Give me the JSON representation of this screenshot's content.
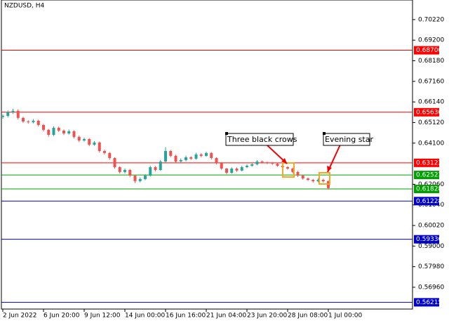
{
  "chart_data": {
    "type": "candlestick",
    "title": "NZDUSD, H4",
    "categories": [
      "2 Jun 2022",
      null,
      null,
      null,
      null,
      null,
      null,
      null,
      "6 Jun 20:00",
      null,
      null,
      null,
      null,
      null,
      null,
      null,
      "9 Jun 12:00",
      null,
      null,
      null,
      null,
      null,
      null,
      null,
      "14 Jun 00:00",
      null,
      null,
      null,
      null,
      null,
      null,
      null,
      "16 Jun 16:00",
      null,
      null,
      null,
      null,
      null,
      null,
      null,
      "21 Jun 04:00",
      null,
      null,
      null,
      null,
      null,
      null,
      null,
      "23 Jun 20:00",
      null,
      null,
      null,
      null,
      null,
      null,
      null,
      "28 Jun 08:00",
      null,
      null,
      null,
      null,
      null,
      null,
      null,
      "1 Jul 00:00"
    ],
    "open": [
      0.654,
      0.6545,
      0.6563,
      0.657,
      0.6535,
      0.6517,
      0.6514,
      0.6521,
      0.65,
      0.6476,
      0.6451,
      0.6486,
      0.6472,
      0.6458,
      0.6469,
      0.6441,
      0.6423,
      0.643,
      0.6402,
      0.6413,
      0.6371,
      0.6361,
      0.6336,
      0.6291,
      0.6267,
      0.6277,
      0.6249,
      0.6222,
      0.6232,
      0.6249,
      0.6291,
      0.6277,
      0.6319,
      0.6371,
      0.6347,
      0.6319,
      0.6326,
      0.634,
      0.6333,
      0.6354,
      0.6347,
      0.6361,
      0.6336,
      0.6312,
      0.6284,
      0.6263,
      0.6284,
      0.6274,
      0.6291,
      0.6298,
      0.6305,
      0.6319,
      0.6315,
      0.6312,
      0.6308,
      0.6298,
      0.6291,
      0.6284,
      0.6267,
      0.6249,
      0.6235,
      0.6228,
      0.6221,
      0.6228,
      0.6221
    ],
    "high": [
      0.6552,
      0.6572,
      0.658,
      0.6578,
      0.6541,
      0.6524,
      0.6529,
      0.6526,
      0.6505,
      0.648,
      0.6494,
      0.6492,
      0.6478,
      0.6477,
      0.6473,
      0.6447,
      0.6438,
      0.6435,
      0.642,
      0.6418,
      0.6377,
      0.6366,
      0.634,
      0.6296,
      0.6285,
      0.6282,
      0.6254,
      0.624,
      0.6257,
      0.6299,
      0.6296,
      0.6327,
      0.639,
      0.6376,
      0.6352,
      0.6334,
      0.6348,
      0.6345,
      0.6362,
      0.636,
      0.6368,
      0.6366,
      0.634,
      0.6316,
      0.6288,
      0.6291,
      0.629,
      0.6298,
      0.6305,
      0.6312,
      0.6326,
      0.6324,
      0.632,
      0.6317,
      0.6313,
      0.6303,
      0.6296,
      0.6289,
      0.6272,
      0.6254,
      0.624,
      0.6233,
      0.6235,
      0.6234,
      0.6226
    ],
    "low": [
      0.6531,
      0.6538,
      0.6555,
      0.6527,
      0.651,
      0.6506,
      0.6508,
      0.6493,
      0.6468,
      0.6442,
      0.6445,
      0.6465,
      0.645,
      0.6452,
      0.6433,
      0.6415,
      0.6417,
      0.6395,
      0.6397,
      0.6364,
      0.6353,
      0.6328,
      0.6283,
      0.6259,
      0.626,
      0.6241,
      0.6212,
      0.6215,
      0.6226,
      0.6244,
      0.627,
      0.6272,
      0.6314,
      0.634,
      0.6312,
      0.6313,
      0.632,
      0.6326,
      0.6328,
      0.634,
      0.6342,
      0.6329,
      0.6305,
      0.6277,
      0.6256,
      0.6258,
      0.6268,
      0.627,
      0.6286,
      0.6293,
      0.63,
      0.6309,
      0.6306,
      0.6302,
      0.6292,
      0.6285,
      0.6278,
      0.626,
      0.6242,
      0.6228,
      0.6222,
      0.6214,
      0.6216,
      0.6215,
      0.618
    ],
    "close": [
      0.6545,
      0.6563,
      0.657,
      0.6535,
      0.6517,
      0.6514,
      0.6521,
      0.65,
      0.6476,
      0.6451,
      0.6486,
      0.6472,
      0.6458,
      0.6469,
      0.6441,
      0.6423,
      0.643,
      0.6402,
      0.6413,
      0.6371,
      0.6361,
      0.6336,
      0.6291,
      0.6267,
      0.6277,
      0.6249,
      0.6222,
      0.6232,
      0.6249,
      0.6291,
      0.6277,
      0.6319,
      0.6371,
      0.6347,
      0.6319,
      0.6326,
      0.634,
      0.6333,
      0.6354,
      0.6347,
      0.6361,
      0.6336,
      0.6312,
      0.6284,
      0.6263,
      0.6284,
      0.6274,
      0.6291,
      0.6298,
      0.6305,
      0.6319,
      0.6315,
      0.6312,
      0.6308,
      0.6298,
      0.6291,
      0.6284,
      0.6267,
      0.6249,
      0.6235,
      0.6228,
      0.6221,
      0.6228,
      0.6221,
      0.6187
    ],
    "up_color": "#26a69a",
    "down_color": "#ef5350",
    "ylim": [
      0.5588,
      0.7119
    ],
    "yticks": [
      {
        "value": 0.7022,
        "label": "0.70220"
      },
      {
        "value": 0.692,
        "label": "0.69200"
      },
      {
        "value": 0.6818,
        "label": "0.68180"
      },
      {
        "value": 0.6716,
        "label": "0.67160"
      },
      {
        "value": 0.6614,
        "label": "0.66140"
      },
      {
        "value": 0.6512,
        "label": "0.65120"
      },
      {
        "value": 0.641,
        "label": "0.64100"
      },
      {
        "value": 0.6206,
        "label": "0.62060"
      },
      {
        "value": 0.6104,
        "label": "0.61040"
      },
      {
        "value": 0.6002,
        "label": "0.60020"
      },
      {
        "value": 0.59,
        "label": "0.59000"
      },
      {
        "value": 0.5798,
        "label": "0.57980"
      },
      {
        "value": 0.5696,
        "label": "0.56960"
      }
    ],
    "levels": [
      {
        "value": 0.687,
        "label": "0.68700",
        "color": "#ff0000"
      },
      {
        "value": 0.6563,
        "label": "0.65630",
        "color": "#ff0000"
      },
      {
        "value": 0.63123,
        "label": "0.63123",
        "color": "#ff0000"
      },
      {
        "value": 0.62523,
        "label": "0.62523",
        "color": "#00a000"
      },
      {
        "value": 0.61828,
        "label": "0.61828",
        "color": "#00a000"
      },
      {
        "value": 0.61228,
        "label": "0.61228",
        "color": "#0000cc"
      },
      {
        "value": 0.59336,
        "label": "0.59336",
        "color": "#0000cc"
      },
      {
        "value": 0.56215,
        "label": "0.56215",
        "color": "#0000cc"
      }
    ],
    "annotations": [
      {
        "text": "Three black crows"
      },
      {
        "text": "Evening star"
      }
    ]
  }
}
